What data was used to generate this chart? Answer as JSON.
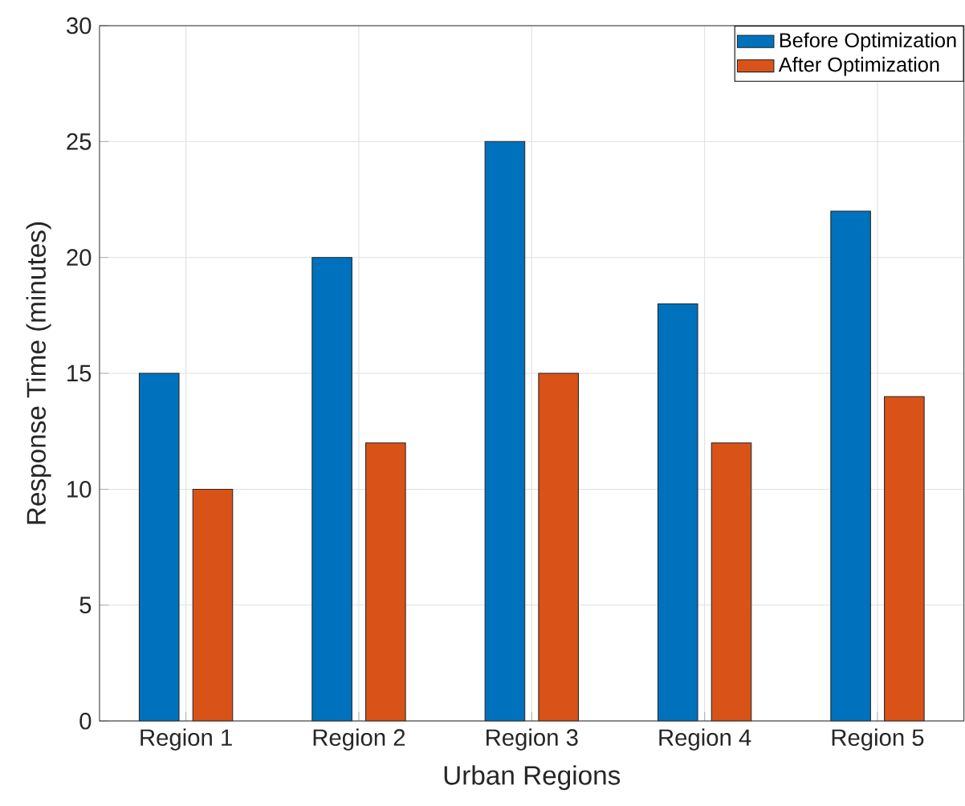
{
  "chart_data": {
    "type": "bar",
    "xlabel": "Urban Regions",
    "ylabel": "Response Time (minutes)",
    "categories": [
      "Region 1",
      "Region 2",
      "Region 3",
      "Region 4",
      "Region 5"
    ],
    "series": [
      {
        "name": "Before Optimization",
        "color": "#0072bd",
        "values": [
          15,
          20,
          25,
          18,
          22
        ]
      },
      {
        "name": "After Optimization",
        "color": "#d95319",
        "values": [
          10,
          12,
          15,
          12,
          14
        ]
      }
    ],
    "ylim": [
      0,
      30
    ],
    "yticks": [
      0,
      5,
      10,
      15,
      20,
      25,
      30
    ],
    "grid": true,
    "legend": "top right"
  }
}
